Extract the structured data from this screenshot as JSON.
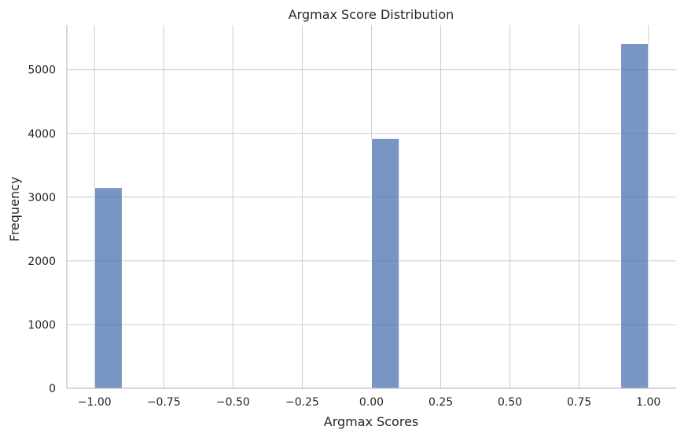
{
  "chart_data": {
    "type": "bar",
    "title": "Argmax Score Distribution",
    "xlabel": "Argmax Scores",
    "ylabel": "Frequency",
    "xlim": [
      -1.1,
      1.1
    ],
    "ylim": [
      0,
      5700
    ],
    "x_ticks": [
      -1.0,
      -0.75,
      -0.5,
      -0.25,
      0.0,
      0.25,
      0.5,
      0.75,
      1.0
    ],
    "x_tick_labels": [
      "−1.00",
      "−0.75",
      "−0.50",
      "−0.25",
      "0.00",
      "0.25",
      "0.50",
      "0.75",
      "1.00"
    ],
    "y_ticks": [
      0,
      1000,
      2000,
      3000,
      4000,
      5000
    ],
    "y_tick_labels": [
      "0",
      "1000",
      "2000",
      "3000",
      "4000",
      "5000"
    ],
    "bins": [
      {
        "x0": -1.0,
        "x1": -0.9,
        "value": 3150
      },
      {
        "x0": 0.0,
        "x1": 0.1,
        "value": 3920
      },
      {
        "x0": 0.9,
        "x1": 1.0,
        "value": 5410
      }
    ],
    "grid": true,
    "bar_color": "#4c72b0"
  }
}
